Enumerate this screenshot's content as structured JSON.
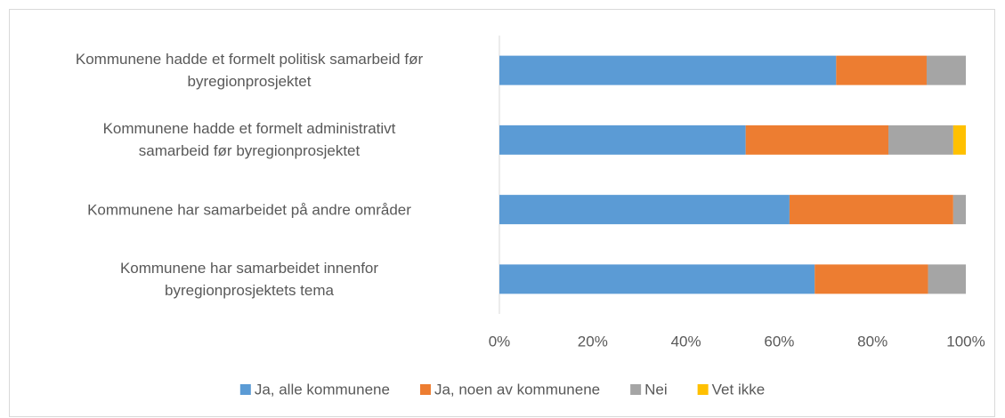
{
  "chart_data": {
    "type": "stacked-bar-horizontal",
    "categories": [
      "Kommunene hadde et formelt politisk samarbeid før\nbyregionprosjektet",
      "Kommunene hadde et formelt administrativt\nsamarbeid før byregionprosjektet",
      "Kommunene har samarbeidet på andre områder",
      "Kommunene har samarbeidet innenfor\nbyregionprosjektets tema"
    ],
    "series": [
      {
        "name": "Ja, alle kommunene",
        "color": "#5b9bd5",
        "values": [
          72.2,
          52.8,
          62.2,
          67.6
        ]
      },
      {
        "name": "Ja, noen av kommunene",
        "color": "#ed7d31",
        "values": [
          19.4,
          30.6,
          35.1,
          24.3
        ]
      },
      {
        "name": "Nei",
        "color": "#a5a5a5",
        "values": [
          8.4,
          13.9,
          2.7,
          8.1
        ]
      },
      {
        "name": "Vet ikke",
        "color": "#ffc000",
        "values": [
          0,
          2.7,
          0,
          0
        ]
      }
    ],
    "xlim": [
      0,
      100
    ],
    "xticks": [
      {
        "value": 0,
        "label": "0%"
      },
      {
        "value": 20,
        "label": "20%"
      },
      {
        "value": 40,
        "label": "40%"
      },
      {
        "value": 60,
        "label": "60%"
      },
      {
        "value": 80,
        "label": "80%"
      },
      {
        "value": 100,
        "label": "100%"
      }
    ],
    "legend": "bottom"
  }
}
